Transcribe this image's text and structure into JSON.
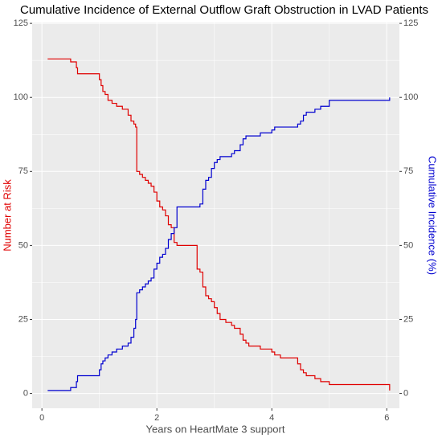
{
  "chart_data": {
    "type": "line",
    "step": true,
    "title": "Cumulative Incidence of External Outflow Graft Obstruction in LVAD Patients",
    "x_label": "Years on HeartMate 3 support",
    "y_label": "Number at Risk",
    "y2_label": "Cumulative Incidence (%)",
    "x": [
      0.1,
      0.5,
      0.6,
      0.62,
      1.0,
      1.03,
      1.06,
      1.1,
      1.15,
      1.22,
      1.3,
      1.4,
      1.5,
      1.55,
      1.6,
      1.63,
      1.65,
      1.7,
      1.75,
      1.8,
      1.85,
      1.9,
      1.95,
      2.0,
      2.05,
      2.1,
      2.15,
      2.2,
      2.25,
      2.3,
      2.35,
      2.7,
      2.75,
      2.8,
      2.85,
      2.9,
      2.95,
      3.0,
      3.05,
      3.1,
      3.2,
      3.3,
      3.35,
      3.45,
      3.5,
      3.55,
      3.6,
      3.8,
      4.0,
      4.05,
      4.15,
      4.45,
      4.5,
      4.55,
      4.6,
      4.75,
      4.85,
      5.0,
      6.05
    ],
    "series": [
      {
        "name": "Number at Risk",
        "color": "#e00000",
        "axis": "y",
        "values": [
          113,
          112,
          110,
          108,
          106,
          104,
          102,
          101,
          99,
          98,
          97,
          96,
          94,
          92,
          91,
          90,
          75,
          74,
          73,
          72,
          71,
          70,
          68,
          65,
          63,
          62,
          60,
          57,
          56,
          51,
          50,
          42,
          41,
          36,
          33,
          32,
          31,
          29,
          27,
          25,
          24,
          23,
          22,
          20,
          18,
          17,
          16,
          15,
          14,
          13,
          12,
          10,
          8,
          7,
          6,
          5,
          4,
          3,
          1
        ]
      },
      {
        "name": "Cumulative Incidence (%)",
        "color": "#0000d0",
        "axis": "y2",
        "values": [
          1,
          2,
          4,
          6,
          8,
          10,
          11,
          12,
          13,
          14,
          15,
          16,
          17,
          19,
          22,
          25,
          34,
          35,
          36,
          37,
          38,
          39,
          42,
          44,
          46,
          47,
          49,
          52,
          54,
          56,
          63,
          63,
          64,
          69,
          72,
          73,
          76,
          78,
          79,
          80,
          80,
          81,
          82,
          84,
          86,
          87,
          87,
          88,
          89,
          90,
          90,
          91,
          92,
          94,
          95,
          96,
          97,
          99,
          100
        ]
      }
    ],
    "xlim": [
      -0.17,
      6.22
    ],
    "xticks": [
      0,
      2,
      4,
      6
    ],
    "ylim": [
      -5,
      125.3
    ],
    "yticks": [
      0,
      25,
      50,
      75,
      100,
      125
    ],
    "y2lim": [
      -5,
      125.3
    ],
    "y2ticks": [
      0,
      25,
      50,
      75,
      100,
      125
    ],
    "grid": true
  }
}
